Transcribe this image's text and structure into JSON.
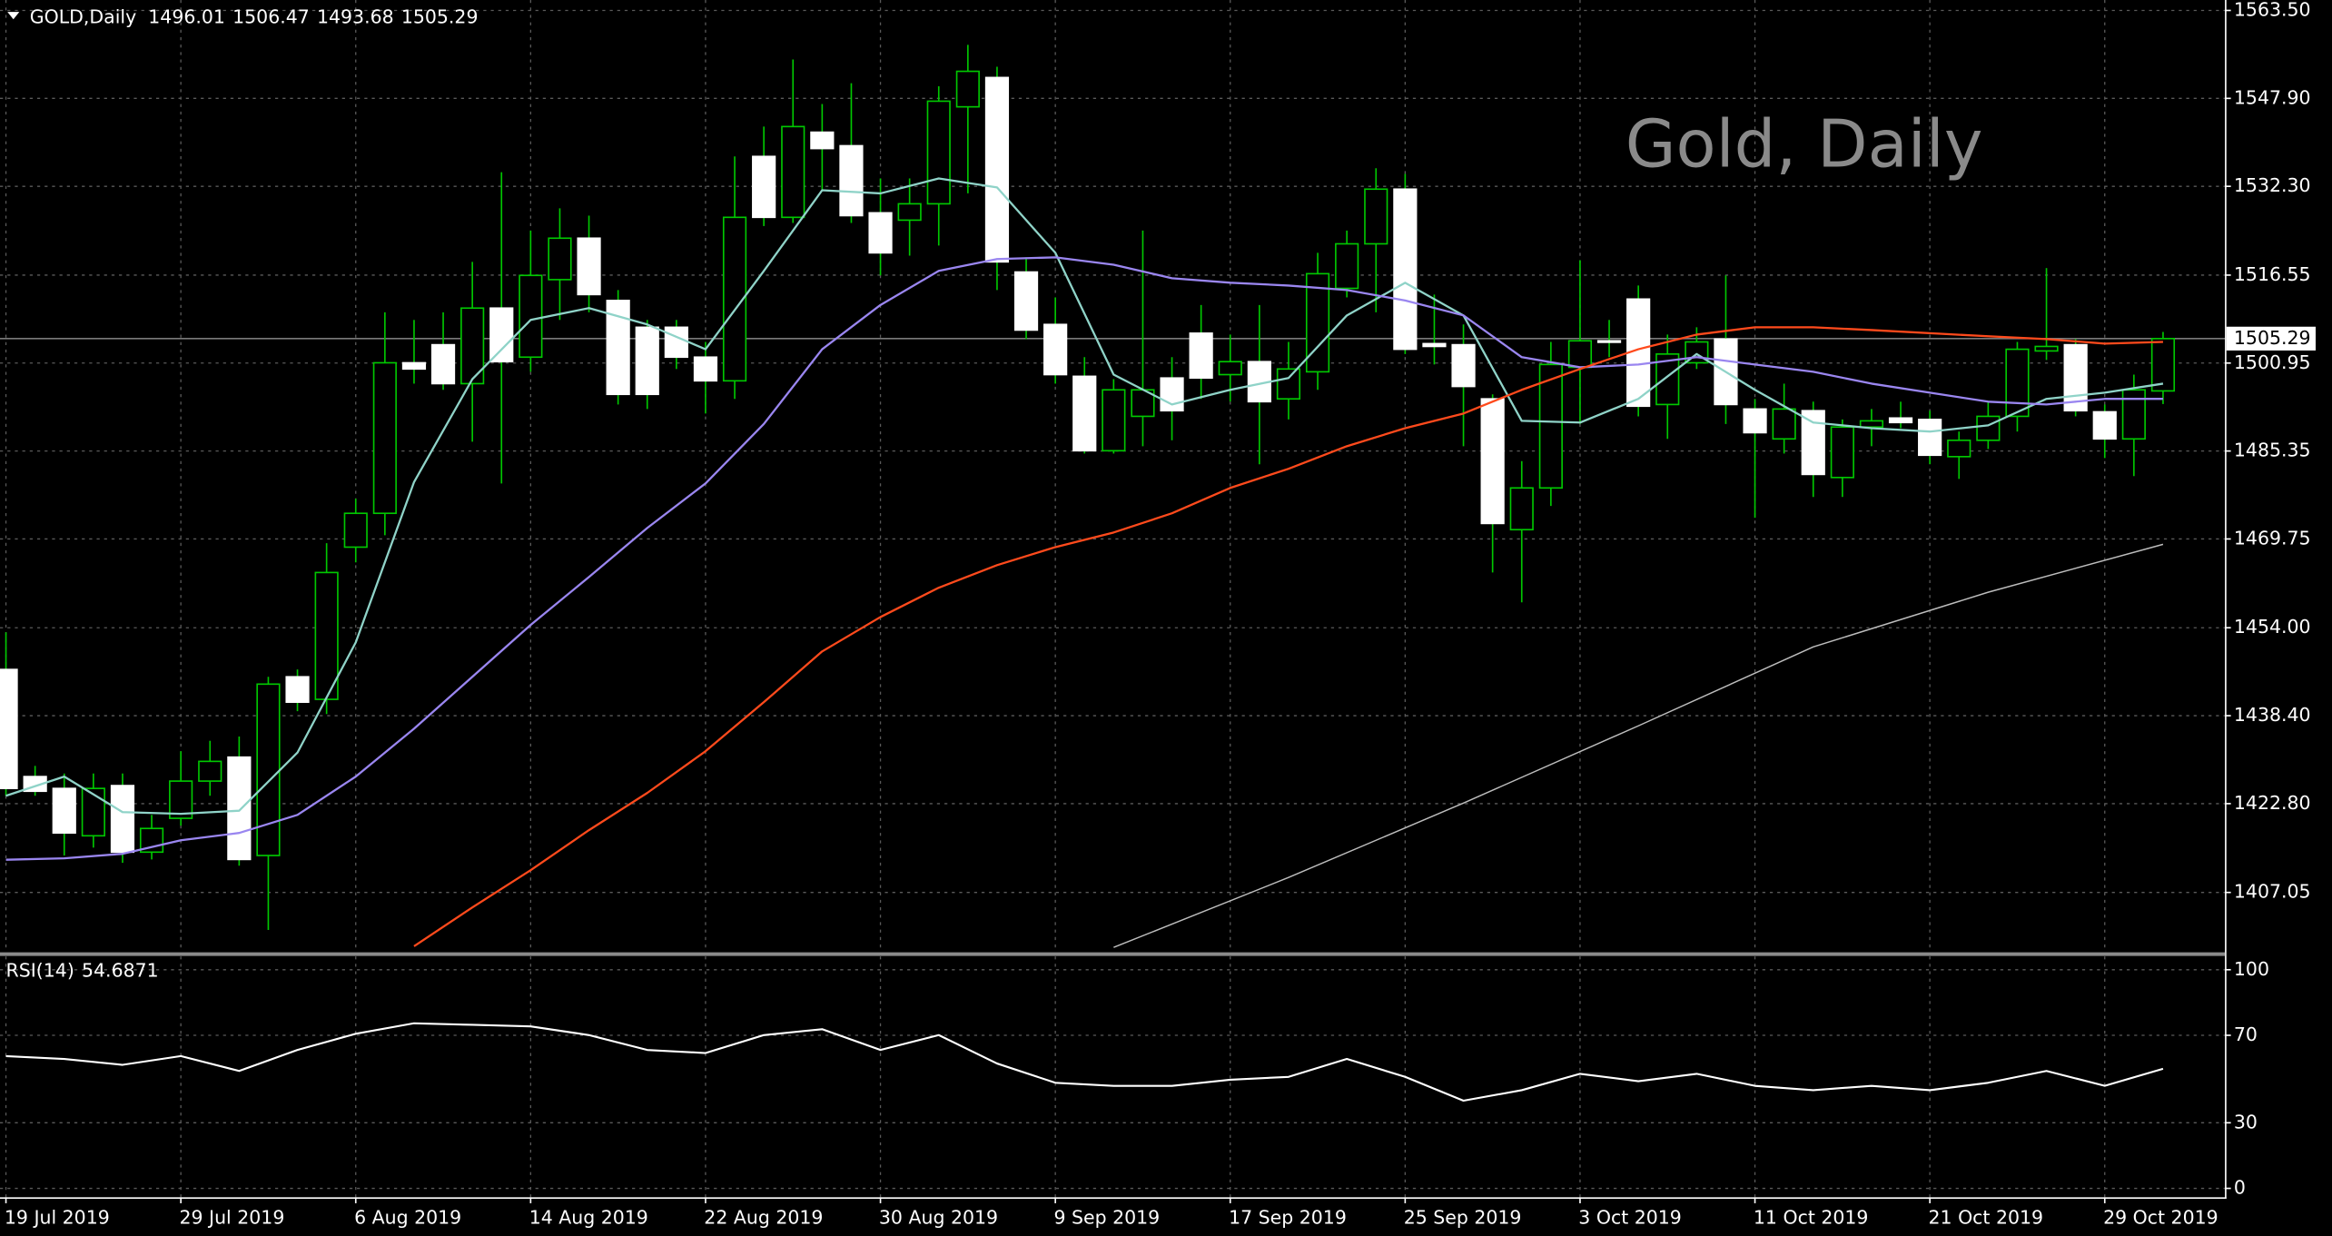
{
  "chart_data": [
    {
      "type": "candlestick",
      "title": "Gold, Daily",
      "symbol": "GOLD,Daily",
      "categories": [
        "19 Jul 2019",
        null,
        null,
        null,
        null,
        null,
        "29 Jul 2019",
        null,
        null,
        null,
        null,
        null,
        "6 Aug 2019",
        null,
        null,
        null,
        null,
        null,
        "14 Aug 2019",
        null,
        null,
        null,
        null,
        null,
        "22 Aug 2019",
        null,
        null,
        null,
        null,
        null,
        "30 Aug 2019",
        null,
        null,
        null,
        null,
        null,
        "9 Sep 2019",
        null,
        null,
        null,
        null,
        null,
        "17 Sep 2019",
        null,
        null,
        null,
        null,
        null,
        "25 Sep 2019",
        null,
        null,
        null,
        null,
        null,
        "3 Oct 2019",
        null,
        null,
        null,
        null,
        null,
        "11 Oct 2019",
        null,
        null,
        null,
        null,
        null,
        "21 Oct 2019",
        null,
        null,
        null,
        null,
        null,
        "29 Oct 2019",
        null,
        null
      ],
      "open": [
        1446.6,
        1427.6,
        1425.5,
        1417.1,
        1426.0,
        1414.2,
        1420.2,
        1426.8,
        1431.05,
        1413.6,
        1445.3,
        1441.3,
        1468.3,
        1474.3,
        1501.0,
        1504.2,
        1497.3,
        1510.7,
        1502.0,
        1515.75,
        1523.1,
        1512.05,
        1507.3,
        1507.3,
        1502.0,
        1497.8,
        1537.6,
        1526.8,
        1541.9,
        1539.5,
        1527.6,
        1526.3,
        1529.2,
        1546.4,
        1551.6,
        1517.1,
        1507.8,
        1498.6,
        1485.4,
        1491.5,
        1498.3,
        1506.25,
        1498.9,
        1501.2,
        1494.6,
        1499.4,
        1514.2,
        1522.1,
        1531.8,
        1504.4,
        1504.2,
        1494.6,
        1471.4,
        1478.8,
        1500.2,
        1504.9,
        1512.3,
        1493.6,
        1501.0,
        1505.2,
        1492.8,
        1487.5,
        1492.5,
        1480.65,
        1489.6,
        1491.2,
        1490.95,
        1484.35,
        1487.25,
        1491.5,
        1503.1,
        1504.2,
        1492.3,
        1487.5,
        1496.01
      ],
      "high": [
        1453.2,
        1429.5,
        1428.15,
        1428.15,
        1428.15,
        1420.8,
        1432.1,
        1433.95,
        1434.7,
        1445.3,
        1446.6,
        1469.0,
        1476.9,
        1509.95,
        1508.6,
        1509.95,
        1518.9,
        1534.8,
        1524.45,
        1528.4,
        1527.1,
        1513.9,
        1508.6,
        1508.6,
        1504.7,
        1537.6,
        1542.9,
        1554.8,
        1546.9,
        1550.6,
        1533.7,
        1533.7,
        1550.05,
        1557.4,
        1553.5,
        1519.7,
        1512.6,
        1502.0,
        1498.1,
        1524.45,
        1502.0,
        1511.25,
        1506.0,
        1511.25,
        1504.7,
        1520.5,
        1524.45,
        1535.5,
        1534.5,
        1513.1,
        1507.8,
        1495.4,
        1483.55,
        1504.7,
        1519.2,
        1508.6,
        1514.7,
        1506.0,
        1507.3,
        1516.5,
        1494.6,
        1497.3,
        1494.1,
        1490.95,
        1492.8,
        1494.1,
        1492.5,
        1488.8,
        1494.1,
        1504.7,
        1517.8,
        1505.2,
        1493.6,
        1498.9,
        1506.47
      ],
      "low": [
        1424.2,
        1424.2,
        1413.6,
        1415.0,
        1412.3,
        1412.9,
        1418.9,
        1424.2,
        1411.8,
        1400.4,
        1439.2,
        1438.7,
        1465.6,
        1470.4,
        1497.3,
        1496.2,
        1487.0,
        1479.6,
        1499.4,
        1508.6,
        1509.95,
        1493.6,
        1492.8,
        1499.9,
        1492.0,
        1494.6,
        1525.25,
        1525.8,
        1531.6,
        1525.8,
        1516.5,
        1520.0,
        1521.8,
        1531.05,
        1513.9,
        1505.2,
        1497.3,
        1484.9,
        1484.9,
        1486.2,
        1487.25,
        1494.6,
        1494.1,
        1483.0,
        1490.95,
        1496.2,
        1512.6,
        1509.95,
        1502.55,
        1500.7,
        1486.2,
        1463.8,
        1458.5,
        1475.6,
        1490.15,
        1502.0,
        1491.5,
        1487.5,
        1499.9,
        1490.15,
        1473.5,
        1484.9,
        1477.2,
        1477.2,
        1486.2,
        1489.4,
        1483.0,
        1480.4,
        1485.7,
        1488.8,
        1501.5,
        1491.5,
        1484.1,
        1480.9,
        1493.68
      ],
      "close": [
        1425.5,
        1425.0,
        1417.6,
        1425.5,
        1414.2,
        1418.4,
        1426.8,
        1430.3,
        1412.9,
        1444.0,
        1440.8,
        1463.8,
        1474.3,
        1501.0,
        1499.9,
        1497.3,
        1510.7,
        1501.2,
        1516.5,
        1523.1,
        1513.1,
        1495.4,
        1495.4,
        1502.0,
        1497.8,
        1526.8,
        1526.8,
        1542.9,
        1539.0,
        1527.1,
        1520.5,
        1529.2,
        1547.4,
        1552.7,
        1518.9,
        1506.8,
        1498.9,
        1485.4,
        1496.2,
        1496.2,
        1492.5,
        1498.3,
        1501.2,
        1494.1,
        1499.9,
        1516.8,
        1522.1,
        1531.8,
        1503.4,
        1503.9,
        1496.8,
        1472.5,
        1478.8,
        1500.7,
        1504.9,
        1504.7,
        1493.3,
        1502.55,
        1504.7,
        1493.6,
        1488.6,
        1492.8,
        1481.2,
        1489.6,
        1490.7,
        1490.4,
        1484.6,
        1487.25,
        1491.5,
        1503.4,
        1503.9,
        1492.5,
        1487.5,
        1496.2,
        1505.29
      ],
      "bull_color": "#000000",
      "bear_color": "#ffffff",
      "wick_color": "#00c800",
      "ylim": [
        1396.5,
        1565.35
      ],
      "yticks": [
        {
          "value": 1563.5,
          "label": "1563.50"
        },
        {
          "value": 1547.9,
          "label": "1547.90"
        },
        {
          "value": 1532.3,
          "label": "1532.30"
        },
        1516.55,
        1500.95,
        1485.35,
        1469.75,
        {
          "value": 1454,
          "label": "1454.00"
        },
        {
          "value": 1438.4,
          "label": "1438.40"
        },
        {
          "value": 1422.8,
          "label": "1422.80"
        },
        1407.05
      ],
      "grid": true,
      "lines": [
        {
          "color": "#8fd3c8",
          "x": [
            0,
            2,
            4,
            6,
            8,
            10,
            12,
            14,
            16,
            18,
            20,
            22,
            24,
            26,
            28,
            30,
            32,
            34,
            36,
            38,
            40,
            42,
            44,
            46,
            48,
            50,
            52,
            54,
            56,
            58,
            60,
            62,
            64,
            66,
            68,
            70,
            72,
            74
          ],
          "values": [
            1424.2,
            1427.6,
            1421.3,
            1421.0,
            1421.55,
            1431.85,
            1451.4,
            1479.85,
            1498.1,
            1508.6,
            1510.7,
            1507.8,
            1503.4,
            1517.3,
            1531.6,
            1531.05,
            1533.7,
            1532.1,
            1520.5,
            1498.9,
            1493.6,
            1496.2,
            1498.3,
            1509.4,
            1515.2,
            1509.4,
            1490.7,
            1490.4,
            1494.6,
            1502.55,
            1496.2,
            1490.4,
            1489.4,
            1488.8,
            1489.9,
            1494.6,
            1495.7,
            1497.3
          ]
        },
        {
          "color": "#9a86f0",
          "x": [
            0,
            2,
            4,
            6,
            8,
            10,
            12,
            14,
            16,
            18,
            20,
            22,
            24,
            26,
            28,
            30,
            32,
            34,
            36,
            38,
            40,
            42,
            44,
            46,
            48,
            50,
            52,
            54,
            56,
            58,
            60,
            62,
            64,
            66,
            68,
            70,
            72,
            74
          ],
          "values": [
            1412.85,
            1413.1,
            1413.9,
            1416.3,
            1417.6,
            1420.8,
            1427.6,
            1436.1,
            1445.3,
            1454.5,
            1463.0,
            1471.7,
            1479.6,
            1490.15,
            1503.4,
            1511.25,
            1517.3,
            1519.4,
            1519.7,
            1518.4,
            1516.0,
            1515.2,
            1514.7,
            1513.9,
            1512.05,
            1509.4,
            1502.0,
            1500.2,
            1500.7,
            1502.0,
            1500.7,
            1499.4,
            1497.3,
            1495.7,
            1494.1,
            1493.6,
            1494.6,
            1494.6
          ]
        },
        {
          "color": "#ff4a1c",
          "x": [
            14,
            16,
            18,
            20,
            22,
            24,
            26,
            28,
            30,
            32,
            34,
            36,
            38,
            40,
            42,
            44,
            46,
            48,
            50,
            52,
            54,
            56,
            58,
            60,
            62,
            64,
            66,
            68,
            70,
            72,
            74
          ],
          "values": [
            1397.5,
            1404.4,
            1411.0,
            1418.1,
            1424.7,
            1432.1,
            1440.8,
            1449.8,
            1455.9,
            1461.1,
            1465.1,
            1468.3,
            1470.9,
            1474.3,
            1478.8,
            1482.2,
            1486.2,
            1489.4,
            1492.0,
            1496.2,
            1499.9,
            1503.4,
            1506.0,
            1507.3,
            1507.3,
            1506.8,
            1506.25,
            1505.7,
            1505.2,
            1504.4,
            1504.7
          ]
        },
        {
          "color": "#bdbdbd",
          "x": [
            38,
            44,
            50,
            56,
            62,
            68,
            74
          ],
          "values": [
            1397.3,
            1409.7,
            1422.9,
            1436.6,
            1450.6,
            1460.3,
            1468.8
          ]
        }
      ]
    },
    {
      "type": "line",
      "name": "RSI(14)",
      "color": "#ffffff",
      "x": [
        0,
        2,
        4,
        6,
        8,
        10,
        12,
        14,
        16,
        18,
        20,
        22,
        24,
        26,
        28,
        30,
        32,
        34,
        36,
        38,
        40,
        42,
        44,
        46,
        48,
        50,
        52,
        54,
        56,
        58,
        60,
        62,
        64,
        66,
        68,
        70,
        72,
        74
      ],
      "values": [
        60.5,
        59.2,
        56.5,
        60.5,
        53.7,
        63.3,
        70.7,
        75.5,
        74.8,
        74.1,
        70.1,
        63.3,
        61.9,
        70.1,
        72.8,
        63.3,
        70.1,
        57.1,
        48.3,
        46.9,
        46.9,
        49.7,
        51.0,
        59.2,
        51.0,
        40.1,
        44.9,
        52.4,
        49.0,
        52.4,
        46.9,
        44.9,
        46.9,
        44.9,
        48.3,
        53.7,
        46.9,
        54.6871
      ],
      "ylim": [
        -4.1,
        106.1
      ],
      "yticks": [
        100,
        70,
        30,
        0
      ],
      "grid": true
    }
  ]
}
